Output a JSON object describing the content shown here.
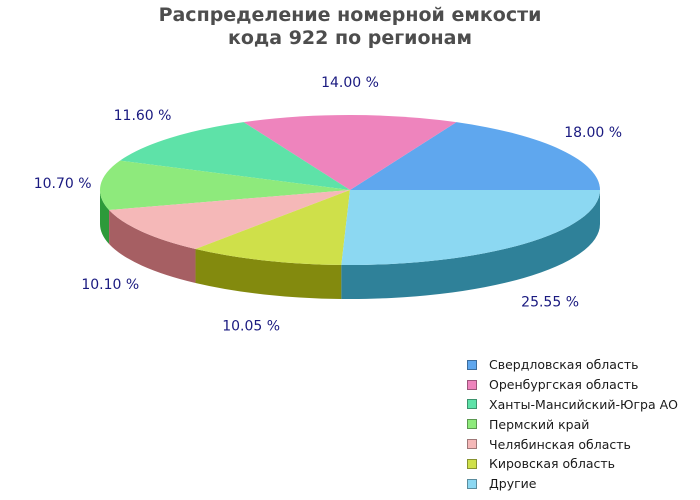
{
  "chart_data": {
    "type": "pie",
    "title_lines": [
      "Распределение номерной емкости",
      "кода 922 по регионам"
    ],
    "slices": [
      {
        "name": "Свердловская область",
        "value": 18.0,
        "label": "18.00 %",
        "color": "#5fa7ee",
        "side_color": "#2e6fa8"
      },
      {
        "name": "Оренбургская область",
        "value": 14.0,
        "label": "14.00 %",
        "color": "#ee84bd",
        "side_color": "#a8497e"
      },
      {
        "name": "Ханты-Мансийский-Югра АО",
        "value": 11.6,
        "label": "11.60 %",
        "color": "#5ee2a8",
        "side_color": "#2a9a68"
      },
      {
        "name": "Пермский край",
        "value": 10.7,
        "label": "10.70 %",
        "color": "#8eea7c",
        "side_color": "#2d9a3a"
      },
      {
        "name": "Челябинская область",
        "value": 10.1,
        "label": "10.10 %",
        "color": "#f5b8b8",
        "side_color": "#a65f63"
      },
      {
        "name": "Кировская область",
        "value": 10.05,
        "label": "10.05 %",
        "color": "#cfe04a",
        "side_color": "#838a0e"
      },
      {
        "name": "Другие",
        "value": 25.55,
        "label": "25.55 %",
        "color": "#8cd8f2",
        "side_color": "#2f8199"
      }
    ],
    "legend_position": "bottom-right",
    "label_color": "#1a1a80"
  }
}
